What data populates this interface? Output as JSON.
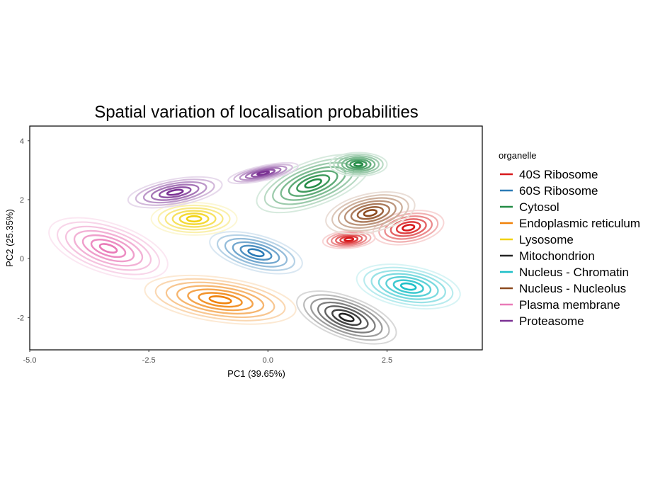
{
  "chart_data": {
    "type": "contour",
    "title": "Spatial variation of localisation probabilities",
    "xlabel": "PC1 (39.65%)",
    "ylabel": "PC2 (25.35%)",
    "xlim": [
      -5.0,
      4.5
    ],
    "ylim": [
      -3.1,
      4.5
    ],
    "x_ticks": [
      -5.0,
      -2.5,
      0.0,
      2.5
    ],
    "x_tick_labels": [
      "-5.0",
      "-2.5",
      "0.0",
      "2.5"
    ],
    "y_ticks": [
      -2,
      0,
      2,
      4
    ],
    "y_tick_labels": [
      "-2",
      "0",
      "2",
      "4"
    ],
    "grid": false,
    "legend": {
      "title": "organelle",
      "position": "right"
    },
    "series": [
      {
        "name": "40S Ribosome",
        "color": "#d7191c",
        "levels": 6,
        "clusters": [
          {
            "cx": 2.95,
            "cy": 1.05,
            "rx": 0.75,
            "ry": 0.55,
            "angle": 10
          },
          {
            "cx": 1.7,
            "cy": 0.65,
            "rx": 0.55,
            "ry": 0.3,
            "angle": 5
          }
        ]
      },
      {
        "name": "60S Ribosome",
        "color": "#2c7bb6",
        "levels": 6,
        "clusters": [
          {
            "cx": -0.25,
            "cy": 0.2,
            "rx": 1.0,
            "ry": 0.6,
            "angle": -15
          }
        ]
      },
      {
        "name": "Cytosol",
        "color": "#238b45",
        "levels": 7,
        "clusters": [
          {
            "cx": 0.95,
            "cy": 2.55,
            "rx": 1.25,
            "ry": 0.75,
            "angle": 20
          },
          {
            "cx": 1.9,
            "cy": 3.2,
            "rx": 0.6,
            "ry": 0.4,
            "angle": 0
          }
        ]
      },
      {
        "name": "Endoplasmic reticulum",
        "color": "#f0820a",
        "levels": 7,
        "clusters": [
          {
            "cx": -1.0,
            "cy": -1.4,
            "rx": 1.6,
            "ry": 0.75,
            "angle": -8
          }
        ]
      },
      {
        "name": "Lysosome",
        "color": "#f1d20f",
        "levels": 6,
        "clusters": [
          {
            "cx": -1.55,
            "cy": 1.35,
            "rx": 0.9,
            "ry": 0.55,
            "angle": 0
          }
        ]
      },
      {
        "name": "Mitochondrion",
        "color": "#252525",
        "levels": 7,
        "clusters": [
          {
            "cx": 1.65,
            "cy": -2.0,
            "rx": 1.1,
            "ry": 0.7,
            "angle": -20
          }
        ]
      },
      {
        "name": "Nucleus - Chromatin",
        "color": "#1ec0c8",
        "levels": 7,
        "clusters": [
          {
            "cx": 2.95,
            "cy": -0.95,
            "rx": 1.1,
            "ry": 0.7,
            "angle": -10
          }
        ]
      },
      {
        "name": "Nucleus - Nucleolus",
        "color": "#8c4a1f",
        "levels": 7,
        "clusters": [
          {
            "cx": 2.15,
            "cy": 1.55,
            "rx": 0.95,
            "ry": 0.65,
            "angle": 12
          }
        ]
      },
      {
        "name": "Plasma membrane",
        "color": "#e97ab8",
        "levels": 7,
        "clusters": [
          {
            "cx": -3.35,
            "cy": 0.35,
            "rx": 1.3,
            "ry": 0.85,
            "angle": -18
          }
        ]
      },
      {
        "name": "Proteasome",
        "color": "#7b3294",
        "levels": 6,
        "clusters": [
          {
            "cx": -1.95,
            "cy": 2.25,
            "rx": 1.0,
            "ry": 0.45,
            "angle": 10
          },
          {
            "cx": -0.1,
            "cy": 2.9,
            "rx": 0.75,
            "ry": 0.25,
            "angle": 12
          }
        ]
      }
    ]
  }
}
